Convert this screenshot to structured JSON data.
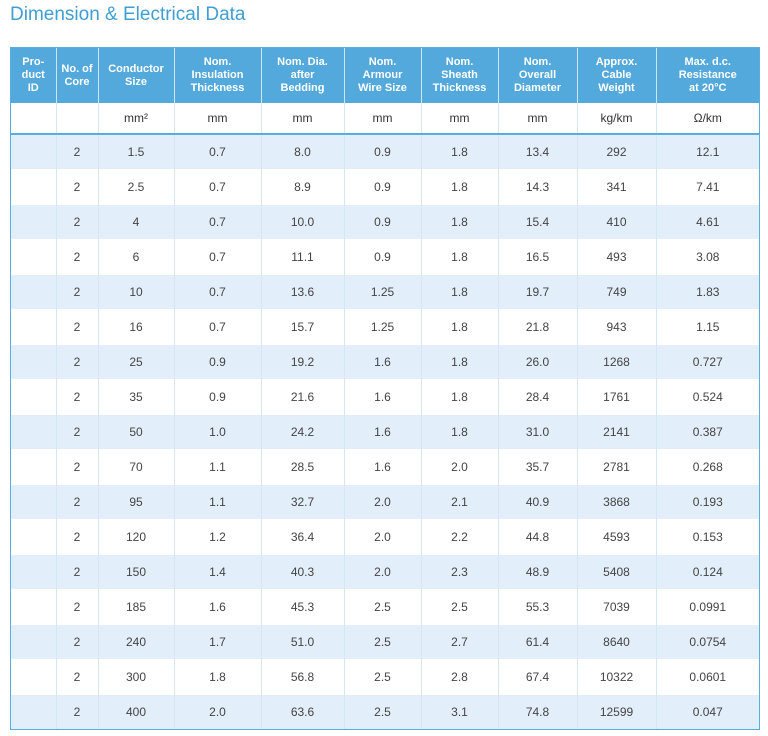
{
  "title": "Dimension & Electrical Data",
  "columns": [
    {
      "header": "Pro-\nduct\nID",
      "unit": ""
    },
    {
      "header": "No. of\nCore",
      "unit": ""
    },
    {
      "header": "Conductor\nSize",
      "unit": "mm²"
    },
    {
      "header": "Nom.\nInsulation\nThickness",
      "unit": "mm"
    },
    {
      "header": "Nom. Dia.\nafter\nBedding",
      "unit": "mm"
    },
    {
      "header": "Nom.\nArmour\nWire Size",
      "unit": "mm"
    },
    {
      "header": "Nom.\nSheath\nThickness",
      "unit": "mm"
    },
    {
      "header": "Nom.\nOverall\nDiameter",
      "unit": "mm"
    },
    {
      "header": "Approx.\nCable\nWeight",
      "unit": "kg/km"
    },
    {
      "header": "Max. d.c.\nResistance\nat 20°C",
      "unit": "Ω/km"
    }
  ],
  "rows": [
    [
      "",
      "2",
      "1.5",
      "0.7",
      "8.0",
      "0.9",
      "1.8",
      "13.4",
      "292",
      "12.1"
    ],
    [
      "",
      "2",
      "2.5",
      "0.7",
      "8.9",
      "0.9",
      "1.8",
      "14.3",
      "341",
      "7.41"
    ],
    [
      "",
      "2",
      "4",
      "0.7",
      "10.0",
      "0.9",
      "1.8",
      "15.4",
      "410",
      "4.61"
    ],
    [
      "",
      "2",
      "6",
      "0.7",
      "11.1",
      "0.9",
      "1.8",
      "16.5",
      "493",
      "3.08"
    ],
    [
      "",
      "2",
      "10",
      "0.7",
      "13.6",
      "1.25",
      "1.8",
      "19.7",
      "749",
      "1.83"
    ],
    [
      "",
      "2",
      "16",
      "0.7",
      "15.7",
      "1.25",
      "1.8",
      "21.8",
      "943",
      "1.15"
    ],
    [
      "",
      "2",
      "25",
      "0.9",
      "19.2",
      "1.6",
      "1.8",
      "26.0",
      "1268",
      "0.727"
    ],
    [
      "",
      "2",
      "35",
      "0.9",
      "21.6",
      "1.6",
      "1.8",
      "28.4",
      "1761",
      "0.524"
    ],
    [
      "",
      "2",
      "50",
      "1.0",
      "24.2",
      "1.6",
      "1.8",
      "31.0",
      "2141",
      "0.387"
    ],
    [
      "",
      "2",
      "70",
      "1.1",
      "28.5",
      "1.6",
      "2.0",
      "35.7",
      "2781",
      "0.268"
    ],
    [
      "",
      "2",
      "95",
      "1.1",
      "32.7",
      "2.0",
      "2.1",
      "40.9",
      "3868",
      "0.193"
    ],
    [
      "",
      "2",
      "120",
      "1.2",
      "36.4",
      "2.0",
      "2.2",
      "44.8",
      "4593",
      "0.153"
    ],
    [
      "",
      "2",
      "150",
      "1.4",
      "40.3",
      "2.0",
      "2.3",
      "48.9",
      "5408",
      "0.124"
    ],
    [
      "",
      "2",
      "185",
      "1.6",
      "45.3",
      "2.5",
      "2.5",
      "55.3",
      "7039",
      "0.0991"
    ],
    [
      "",
      "2",
      "240",
      "1.7",
      "51.0",
      "2.5",
      "2.7",
      "61.4",
      "8640",
      "0.0754"
    ],
    [
      "",
      "2",
      "300",
      "1.8",
      "56.8",
      "2.5",
      "2.8",
      "67.4",
      "10322",
      "0.0601"
    ],
    [
      "",
      "2",
      "400",
      "2.0",
      "63.6",
      "2.5",
      "3.1",
      "74.8",
      "12599",
      "0.047"
    ]
  ]
}
